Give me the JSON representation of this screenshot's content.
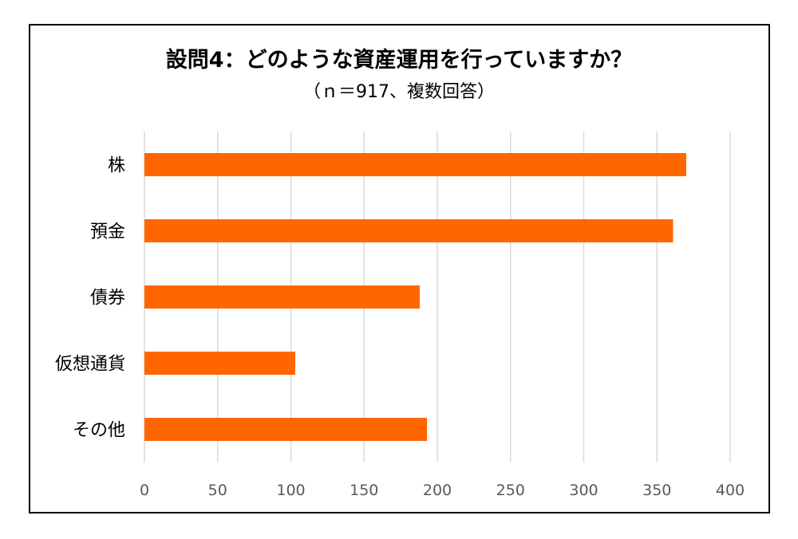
{
  "chart_data": {
    "type": "bar",
    "orientation": "horizontal",
    "title": "設問4：どのような資産運用を行っていますか？",
    "subtitle": "（ｎ＝917、複数回答）",
    "categories": [
      "株",
      "預金",
      "債券",
      "仮想通貨",
      "その他"
    ],
    "values": [
      370,
      361,
      188,
      103,
      193
    ],
    "xlim": [
      0,
      400
    ],
    "xticks": [
      "0",
      "50",
      "100",
      "150",
      "200",
      "250",
      "300",
      "350",
      "400"
    ],
    "xlabel": "",
    "ylabel": "",
    "grid": true,
    "legend": "none",
    "bar_color": "#FF6600"
  }
}
